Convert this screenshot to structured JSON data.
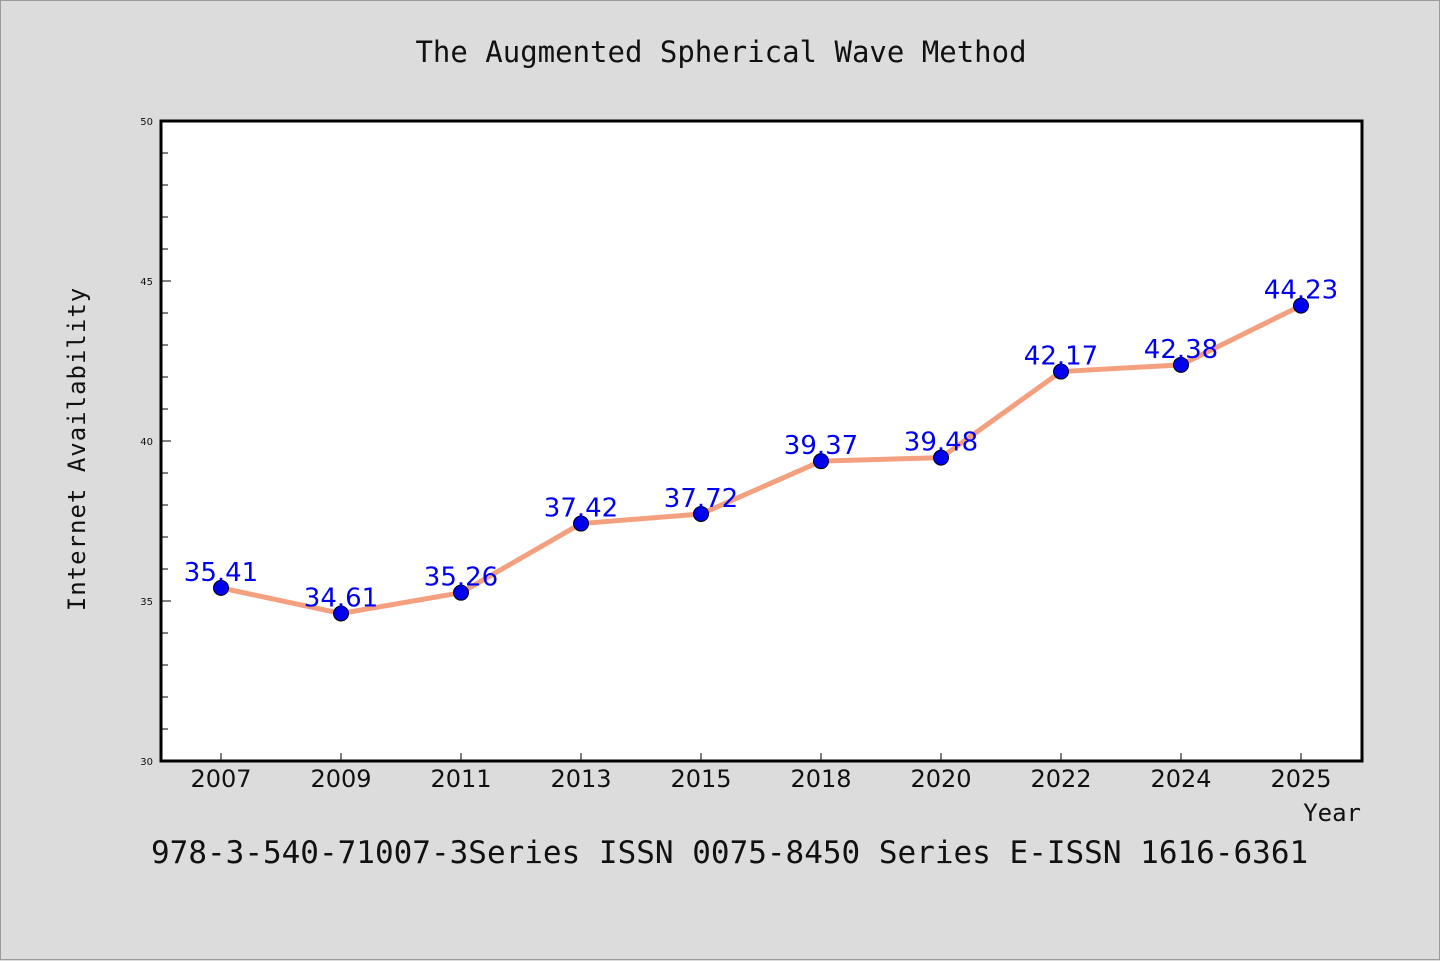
{
  "chart_data": {
    "type": "line",
    "title": "The Augmented Spherical Wave Method",
    "xlabel": "Year",
    "ylabel": "Internet Availability",
    "categories": [
      "2007",
      "2009",
      "2011",
      "2013",
      "2015",
      "2018",
      "2020",
      "2022",
      "2024",
      "2025"
    ],
    "series": [
      {
        "values": [
          35.41,
          34.61,
          35.26,
          37.42,
          37.72,
          39.37,
          39.48,
          42.17,
          42.38,
          44.23
        ],
        "line_color": "#f4a07e",
        "marker_color": "#0000ee",
        "label_color": "#0000ee"
      }
    ],
    "ylim": [
      30,
      50
    ],
    "y_major_ticks": [
      30,
      35,
      40,
      45,
      50
    ],
    "y_tick_labels": [
      "30",
      "35",
      "40",
      "45",
      "50"
    ],
    "y_minor_step": 1,
    "grid": false,
    "legend": "none"
  },
  "footer": "978-3-540-71007-3Series ISSN 0075-8450 Series E-ISSN 1616-6361"
}
